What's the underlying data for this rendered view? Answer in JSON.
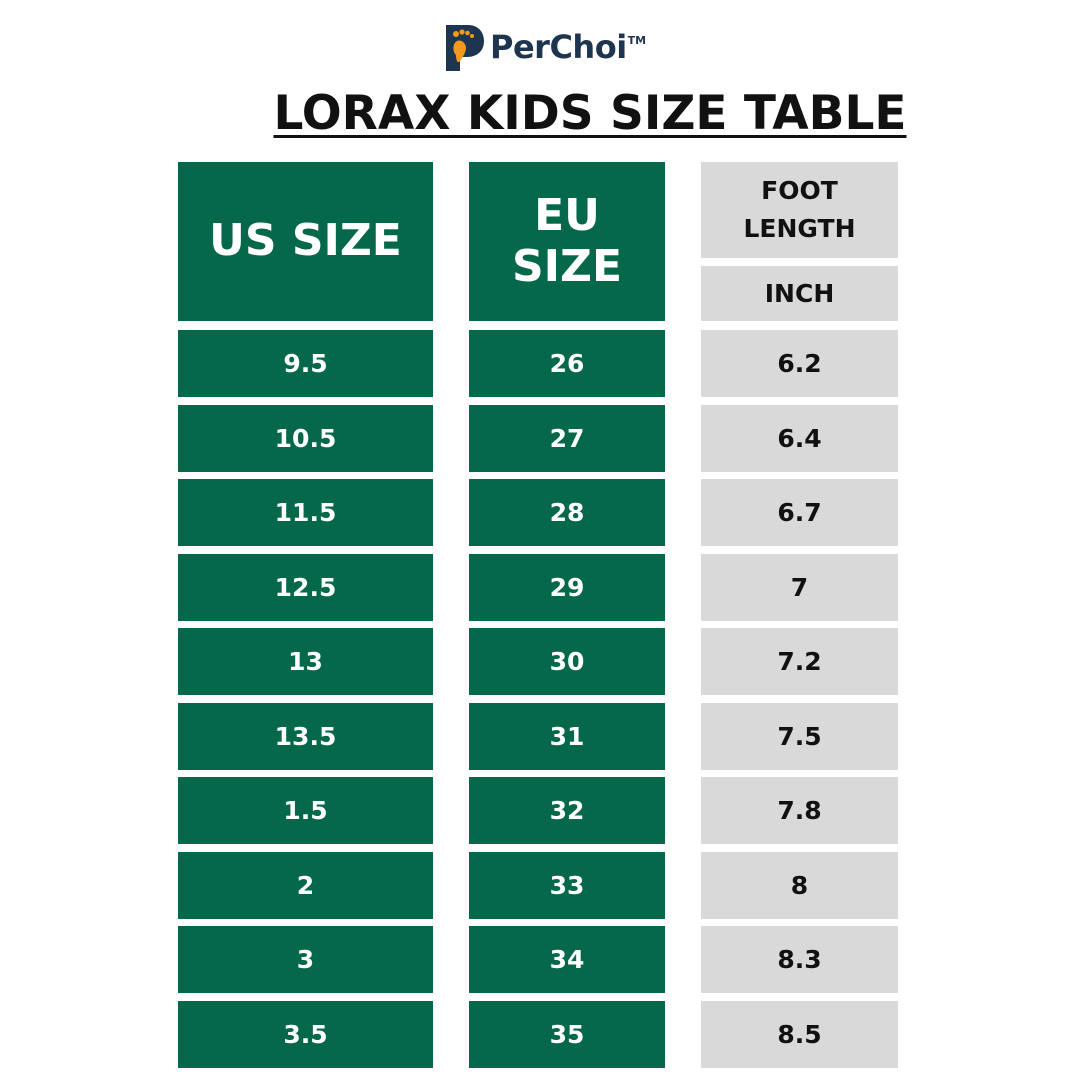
{
  "brand": {
    "name": "PerChoi",
    "trademark": "TM",
    "logo_icon": "foot-p-logo-icon",
    "colors": {
      "navy": "#1e3550",
      "orange": "#f39a1c"
    }
  },
  "title": "LORAX KIDS SIZE TABLE",
  "table": {
    "headers": {
      "us": "US SIZE",
      "eu_line1": "EU",
      "eu_line2": "SIZE",
      "foot_line1": "FOOT",
      "foot_line2": "LENGTH",
      "unit": "INCH"
    },
    "rows": [
      {
        "us": "9.5",
        "eu": "26",
        "inch": "6.2"
      },
      {
        "us": "10.5",
        "eu": "27",
        "inch": "6.4"
      },
      {
        "us": "11.5",
        "eu": "28",
        "inch": "6.7"
      },
      {
        "us": "12.5",
        "eu": "29",
        "inch": "7"
      },
      {
        "us": "13",
        "eu": "30",
        "inch": "7.2"
      },
      {
        "us": "13.5",
        "eu": "31",
        "inch": "7.5"
      },
      {
        "us": "1.5",
        "eu": "32",
        "inch": "7.8"
      },
      {
        "us": "2",
        "eu": "33",
        "inch": "8"
      },
      {
        "us": "3",
        "eu": "34",
        "inch": "8.3"
      },
      {
        "us": "3.5",
        "eu": "35",
        "inch": "8.5"
      }
    ]
  },
  "colors": {
    "green": "#05684a",
    "grey": "#d9d9d9",
    "text_dark": "#111111",
    "text_light": "#ffffff"
  }
}
